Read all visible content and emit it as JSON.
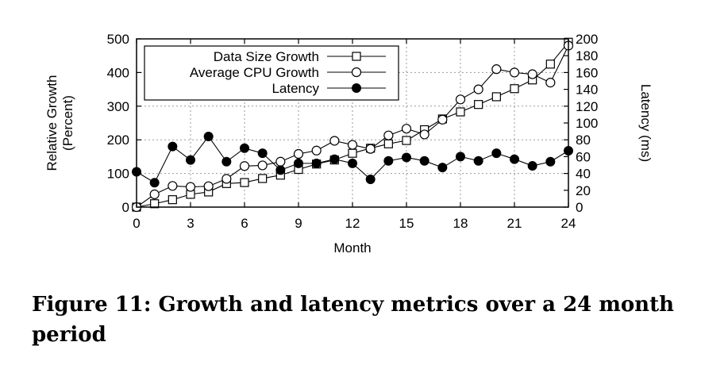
{
  "chart_data": {
    "type": "line",
    "x": [
      0,
      1,
      2,
      3,
      4,
      5,
      6,
      7,
      8,
      9,
      10,
      11,
      12,
      13,
      14,
      15,
      16,
      17,
      18,
      19,
      20,
      21,
      22,
      23,
      24
    ],
    "xlabel": "Month",
    "xticks": [
      0,
      3,
      6,
      9,
      12,
      15,
      18,
      21,
      24
    ],
    "xlim": [
      0,
      24
    ],
    "ylabel_lines": [
      "Relative Growth",
      "(Percent)"
    ],
    "ylim": [
      0,
      500
    ],
    "yticks": [
      0,
      100,
      200,
      300,
      400,
      500
    ],
    "y2label": "Latency (ms)",
    "y2lim": [
      0,
      200
    ],
    "y2ticks": [
      0,
      20,
      40,
      60,
      80,
      100,
      120,
      140,
      160,
      180,
      200
    ],
    "grid": true,
    "legend_position": "top-left",
    "series": [
      {
        "name": "Data Size Growth",
        "marker": "square",
        "axis": "left",
        "values": [
          0,
          10,
          22,
          38,
          45,
          70,
          73,
          85,
          95,
          112,
          128,
          140,
          160,
          175,
          188,
          198,
          230,
          262,
          283,
          305,
          328,
          352,
          378,
          425,
          490
        ]
      },
      {
        "name": "Average CPU Growth",
        "marker": "circle-open",
        "axis": "left",
        "values": [
          0,
          38,
          63,
          60,
          62,
          84,
          122,
          124,
          135,
          158,
          168,
          197,
          185,
          173,
          213,
          233,
          216,
          260,
          320,
          350,
          410,
          400,
          395,
          370,
          480
        ]
      },
      {
        "name": "Latency",
        "marker": "circle-filled",
        "axis": "right",
        "values": [
          42,
          29,
          72,
          56,
          84,
          54,
          70,
          64,
          44,
          52,
          52,
          57,
          52,
          33,
          55,
          59,
          55,
          47,
          60,
          55,
          64,
          57,
          49,
          54,
          67
        ]
      }
    ]
  },
  "caption": "Figure 11: Growth and latency metrics over a 24 month period"
}
